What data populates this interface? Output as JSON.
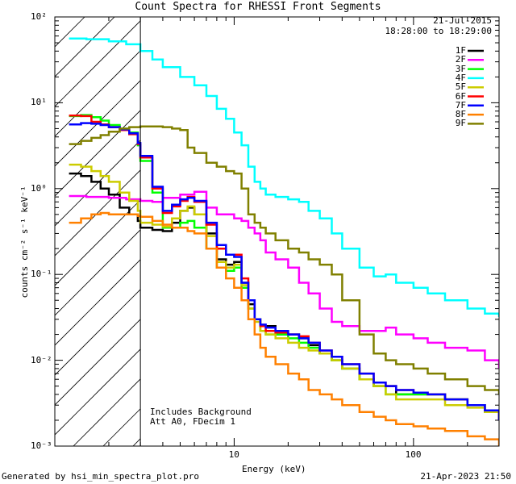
{
  "footer": {
    "generated": "Generated by hsi_min_spectra_plot.pro",
    "timestamp": "21-Apr-2023 21:50"
  },
  "annotations": {
    "date": "21-Jul-2015",
    "time_range": "18:28:00 to 18:29:00",
    "background_note": "Includes Background",
    "att_note": "Att A0, FDecim 1"
  },
  "chart_data": {
    "type": "line",
    "title": "Count Spectra for RHESSI Front Segments",
    "xlabel": "Energy (keV)",
    "ylabel": "counts cm⁻² s⁻¹ keV⁻¹",
    "xscale": "log",
    "yscale": "log",
    "xlim": [
      1.0,
      300
    ],
    "ylim": [
      0.001,
      100
    ],
    "x_ticks": [
      {
        "v": 10,
        "label": "10"
      },
      {
        "v": 100,
        "label": "100"
      }
    ],
    "x_minor": [
      2,
      3,
      4,
      5,
      6,
      7,
      8,
      9,
      20,
      30,
      40,
      50,
      60,
      70,
      80,
      90,
      200,
      300
    ],
    "y_ticks": [
      {
        "v": 0.001,
        "label": "10⁻³"
      },
      {
        "v": 0.01,
        "label": "10⁻²"
      },
      {
        "v": 0.1,
        "label": "10⁻¹"
      },
      {
        "v": 1,
        "label": "10⁰"
      },
      {
        "v": 10,
        "label": "10¹"
      },
      {
        "v": 100,
        "label": "10²"
      }
    ],
    "shaded_region": {
      "x0": 1.0,
      "x1": 3.0,
      "style": "hatched",
      "boundary_line_at": 3.0
    },
    "legend_position": "top-right",
    "series": [
      {
        "name": "1F",
        "color": "#000000",
        "x": [
          1.2,
          1.4,
          1.6,
          1.8,
          2.0,
          2.3,
          2.6,
          2.9,
          3.0,
          3.5,
          4,
          4.5,
          5,
          5.5,
          6,
          7,
          8,
          9,
          10,
          11,
          12,
          13,
          14,
          15,
          17,
          20,
          23,
          26,
          30,
          35,
          40,
          50,
          60,
          70,
          80,
          100,
          120,
          150,
          200,
          250,
          300
        ],
        "y": [
          1.5,
          1.4,
          1.2,
          1.0,
          0.85,
          0.6,
          0.5,
          0.42,
          0.35,
          0.33,
          0.32,
          0.4,
          0.55,
          0.6,
          0.5,
          0.3,
          0.15,
          0.13,
          0.14,
          0.08,
          0.045,
          0.03,
          0.025,
          0.025,
          0.02,
          0.02,
          0.018,
          0.015,
          0.012,
          0.01,
          0.008,
          0.006,
          0.005,
          0.005,
          0.004,
          0.004,
          0.004,
          0.0035,
          0.003,
          0.0025,
          0.002
        ]
      },
      {
        "name": "2F",
        "color": "#ff00ff",
        "x": [
          1.2,
          1.5,
          2.0,
          2.5,
          3.0,
          3.5,
          4,
          5,
          6,
          7,
          8,
          9,
          10,
          11,
          12,
          13,
          14,
          15,
          17,
          20,
          23,
          26,
          30,
          35,
          40,
          50,
          60,
          70,
          80,
          100,
          120,
          150,
          200,
          250,
          300
        ],
        "y": [
          0.82,
          0.8,
          0.78,
          0.75,
          0.72,
          0.7,
          0.78,
          0.85,
          0.92,
          0.6,
          0.5,
          0.5,
          0.45,
          0.42,
          0.35,
          0.3,
          0.25,
          0.18,
          0.15,
          0.12,
          0.08,
          0.06,
          0.04,
          0.028,
          0.025,
          0.022,
          0.022,
          0.024,
          0.02,
          0.018,
          0.016,
          0.014,
          0.013,
          0.01,
          0.008
        ]
      },
      {
        "name": "3F",
        "color": "#00ff00",
        "x": [
          1.2,
          1.4,
          1.6,
          1.8,
          2.0,
          2.3,
          2.6,
          2.9,
          3.0,
          3.5,
          4,
          4.5,
          5,
          5.5,
          6,
          7,
          8,
          9,
          10,
          11,
          12,
          13,
          14,
          15,
          17,
          20,
          23,
          26,
          30,
          35,
          40,
          50,
          60,
          70,
          80,
          100,
          120,
          150,
          200,
          250,
          300
        ],
        "y": [
          7,
          7.2,
          6.8,
          6.2,
          5.5,
          5.0,
          4.5,
          3.2,
          2.1,
          0.9,
          0.35,
          0.35,
          0.4,
          0.42,
          0.35,
          0.2,
          0.12,
          0.11,
          0.12,
          0.07,
          0.04,
          0.03,
          0.022,
          0.02,
          0.02,
          0.018,
          0.016,
          0.014,
          0.012,
          0.01,
          0.008,
          0.006,
          0.005,
          0.004,
          0.004,
          0.004,
          0.004,
          0.0035,
          0.003,
          0.0025,
          0.002
        ]
      },
      {
        "name": "4F",
        "color": "#00ffff",
        "x": [
          1.2,
          1.5,
          2.0,
          2.5,
          3.0,
          3.5,
          4,
          5,
          6,
          7,
          8,
          9,
          10,
          11,
          12,
          13,
          14,
          15,
          17,
          20,
          23,
          26,
          30,
          35,
          40,
          50,
          60,
          70,
          80,
          100,
          120,
          150,
          200,
          250,
          300
        ],
        "y": [
          56,
          55,
          52,
          48,
          40,
          32,
          26,
          20,
          16,
          12,
          8.5,
          6.5,
          4.5,
          3.2,
          1.8,
          1.2,
          1.0,
          0.85,
          0.8,
          0.75,
          0.7,
          0.55,
          0.45,
          0.3,
          0.2,
          0.12,
          0.095,
          0.1,
          0.08,
          0.07,
          0.06,
          0.05,
          0.04,
          0.035,
          0.032
        ]
      },
      {
        "name": "5F",
        "color": "#cccc00",
        "x": [
          1.2,
          1.4,
          1.6,
          1.8,
          2.0,
          2.3,
          2.6,
          2.9,
          3.0,
          3.5,
          4,
          4.5,
          5,
          5.5,
          6,
          7,
          8,
          9,
          10,
          11,
          12,
          13,
          14,
          15,
          17,
          20,
          23,
          26,
          30,
          35,
          40,
          50,
          60,
          70,
          80,
          100,
          120,
          150,
          200,
          250,
          300
        ],
        "y": [
          1.9,
          1.8,
          1.6,
          1.4,
          1.2,
          0.9,
          0.72,
          0.55,
          0.4,
          0.38,
          0.36,
          0.45,
          0.55,
          0.62,
          0.5,
          0.28,
          0.14,
          0.12,
          0.13,
          0.075,
          0.04,
          0.028,
          0.022,
          0.02,
          0.018,
          0.016,
          0.014,
          0.013,
          0.012,
          0.01,
          0.008,
          0.006,
          0.005,
          0.004,
          0.0035,
          0.0035,
          0.0035,
          0.003,
          0.0028,
          0.0025,
          0.002
        ]
      },
      {
        "name": "6F",
        "color": "#ff0000",
        "x": [
          1.2,
          1.4,
          1.6,
          1.8,
          2.0,
          2.3,
          2.6,
          2.9,
          3.0,
          3.5,
          4,
          4.5,
          5,
          5.5,
          6,
          7,
          8,
          9,
          10,
          11,
          12,
          13,
          14,
          15,
          17,
          20,
          23,
          26,
          30,
          35,
          40,
          50,
          60,
          70,
          80,
          100,
          120,
          150,
          200,
          250,
          300
        ],
        "y": [
          7.1,
          7.0,
          6.0,
          5.6,
          5.2,
          4.8,
          4.3,
          3.3,
          2.3,
          1.0,
          0.52,
          0.62,
          0.72,
          0.8,
          0.7,
          0.38,
          0.2,
          0.17,
          0.17,
          0.09,
          0.05,
          0.03,
          0.025,
          0.022,
          0.021,
          0.02,
          0.019,
          0.016,
          0.013,
          0.011,
          0.009,
          0.007,
          0.0055,
          0.005,
          0.0045,
          0.0042,
          0.004,
          0.0035,
          0.003,
          0.0026,
          0.002
        ]
      },
      {
        "name": "7F",
        "color": "#0000ff",
        "x": [
          1.2,
          1.4,
          1.6,
          1.8,
          2.0,
          2.3,
          2.6,
          2.9,
          3.0,
          3.5,
          4,
          4.5,
          5,
          5.5,
          6,
          7,
          8,
          9,
          10,
          11,
          12,
          13,
          14,
          15,
          17,
          20,
          23,
          26,
          30,
          35,
          40,
          50,
          60,
          70,
          80,
          100,
          120,
          150,
          200,
          250,
          300
        ],
        "y": [
          5.6,
          5.8,
          5.7,
          5.5,
          5.2,
          4.9,
          4.4,
          3.4,
          2.4,
          1.05,
          0.55,
          0.65,
          0.75,
          0.78,
          0.72,
          0.4,
          0.22,
          0.17,
          0.16,
          0.08,
          0.05,
          0.03,
          0.026,
          0.024,
          0.022,
          0.02,
          0.018,
          0.016,
          0.013,
          0.011,
          0.009,
          0.007,
          0.0055,
          0.005,
          0.0045,
          0.0042,
          0.004,
          0.0035,
          0.003,
          0.0026,
          0.002
        ]
      },
      {
        "name": "8F",
        "color": "#ff8000",
        "x": [
          1.2,
          1.4,
          1.6,
          1.8,
          2.0,
          2.3,
          2.6,
          2.9,
          3.0,
          3.5,
          4,
          4.5,
          5,
          5.5,
          6,
          7,
          8,
          9,
          10,
          11,
          12,
          13,
          14,
          15,
          17,
          20,
          23,
          26,
          30,
          35,
          40,
          50,
          60,
          70,
          80,
          100,
          120,
          150,
          200,
          250,
          300
        ],
        "y": [
          0.4,
          0.45,
          0.5,
          0.52,
          0.5,
          0.5,
          0.5,
          0.48,
          0.47,
          0.42,
          0.38,
          0.35,
          0.35,
          0.32,
          0.3,
          0.2,
          0.12,
          0.09,
          0.07,
          0.05,
          0.03,
          0.02,
          0.014,
          0.011,
          0.009,
          0.007,
          0.006,
          0.0045,
          0.004,
          0.0035,
          0.003,
          0.0025,
          0.0022,
          0.002,
          0.0018,
          0.0017,
          0.0016,
          0.0015,
          0.0013,
          0.0012,
          0.001
        ]
      },
      {
        "name": "9F",
        "color": "#808000",
        "x": [
          1.2,
          1.4,
          1.6,
          1.8,
          2.0,
          2.3,
          2.6,
          2.9,
          3.0,
          3.5,
          4,
          4.5,
          5,
          5.5,
          6,
          7,
          8,
          9,
          10,
          11,
          12,
          13,
          14,
          15,
          17,
          20,
          23,
          26,
          30,
          35,
          40,
          50,
          60,
          70,
          80,
          100,
          120,
          150,
          200,
          250,
          300
        ],
        "y": [
          3.3,
          3.6,
          3.9,
          4.2,
          4.6,
          5.0,
          5.2,
          5.2,
          5.3,
          5.3,
          5.2,
          5.0,
          4.8,
          3.0,
          2.6,
          2.0,
          1.8,
          1.6,
          1.5,
          1.0,
          0.5,
          0.4,
          0.35,
          0.3,
          0.25,
          0.2,
          0.18,
          0.15,
          0.13,
          0.1,
          0.05,
          0.02,
          0.012,
          0.01,
          0.009,
          0.008,
          0.007,
          0.006,
          0.005,
          0.0045,
          0.004
        ]
      }
    ]
  }
}
